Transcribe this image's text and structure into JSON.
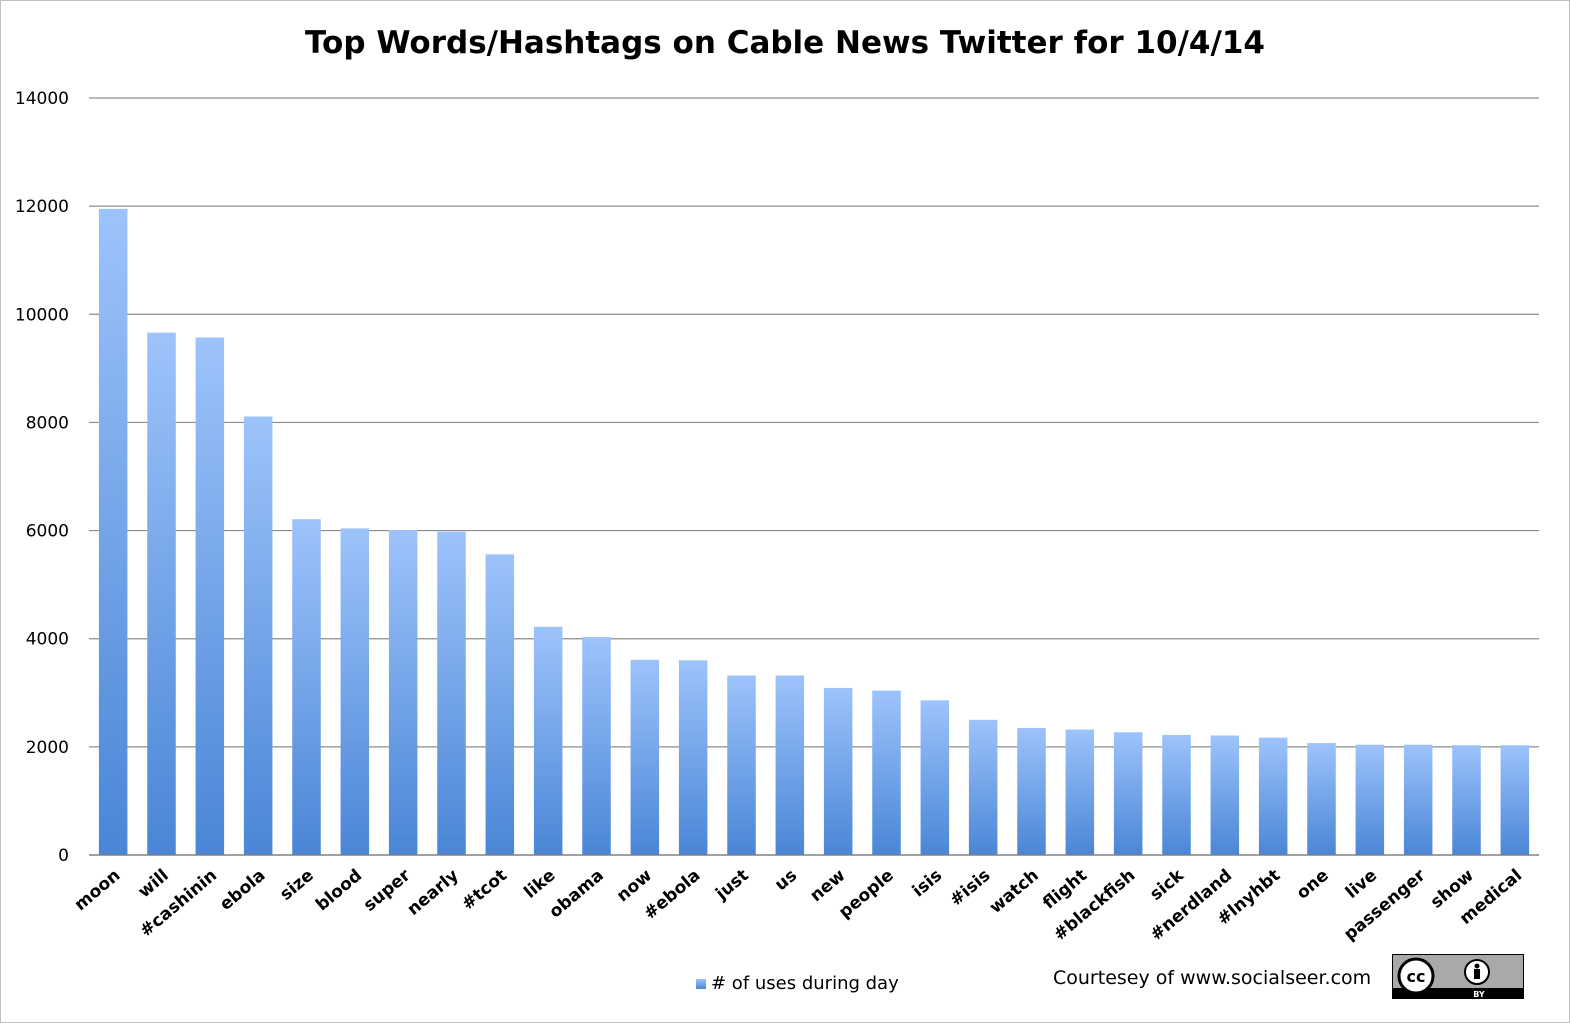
{
  "chart_data": {
    "type": "bar",
    "title": "Top Words/Hashtags on Cable News Twitter for 10/4/14",
    "xlabel": "",
    "ylabel": "",
    "ylim": [
      0,
      14000
    ],
    "yticks": [
      0,
      2000,
      4000,
      6000,
      8000,
      10000,
      12000,
      14000
    ],
    "ytick_labels": [
      "0",
      "2000",
      "4000",
      "6000",
      "8000",
      "10000",
      "12000",
      "14000"
    ],
    "grid": true,
    "legend_position": "bottom",
    "categories": [
      "moon",
      "will",
      "#cashinin",
      "ebola",
      "size",
      "blood",
      "super",
      "nearly",
      "#tcot",
      "like",
      "obama",
      "now",
      "#ebola",
      "just",
      "us",
      "new",
      "people",
      "isis",
      "#isis",
      "watch",
      "flight",
      "#blackfish",
      "sick",
      "#nerdland",
      "#lnyhbt",
      "one",
      "live",
      "passenger",
      "show",
      "medical"
    ],
    "series": [
      {
        "name": "# of uses during day",
        "color_top": "#9dc3fb",
        "color_bottom": "#4a86d6",
        "values": [
          11950,
          9660,
          9570,
          8110,
          6210,
          6040,
          6010,
          5980,
          5560,
          4220,
          4030,
          3610,
          3600,
          3320,
          3320,
          3090,
          3040,
          2860,
          2500,
          2350,
          2320,
          2270,
          2220,
          2210,
          2170,
          2070,
          2040,
          2040,
          2030,
          2030
        ]
      }
    ]
  },
  "credit": "Courtesey of www.socialseer.com",
  "license_badge": {
    "icon": "creative-commons-by-icon",
    "cc_text": "cc",
    "by_text": "BY"
  }
}
